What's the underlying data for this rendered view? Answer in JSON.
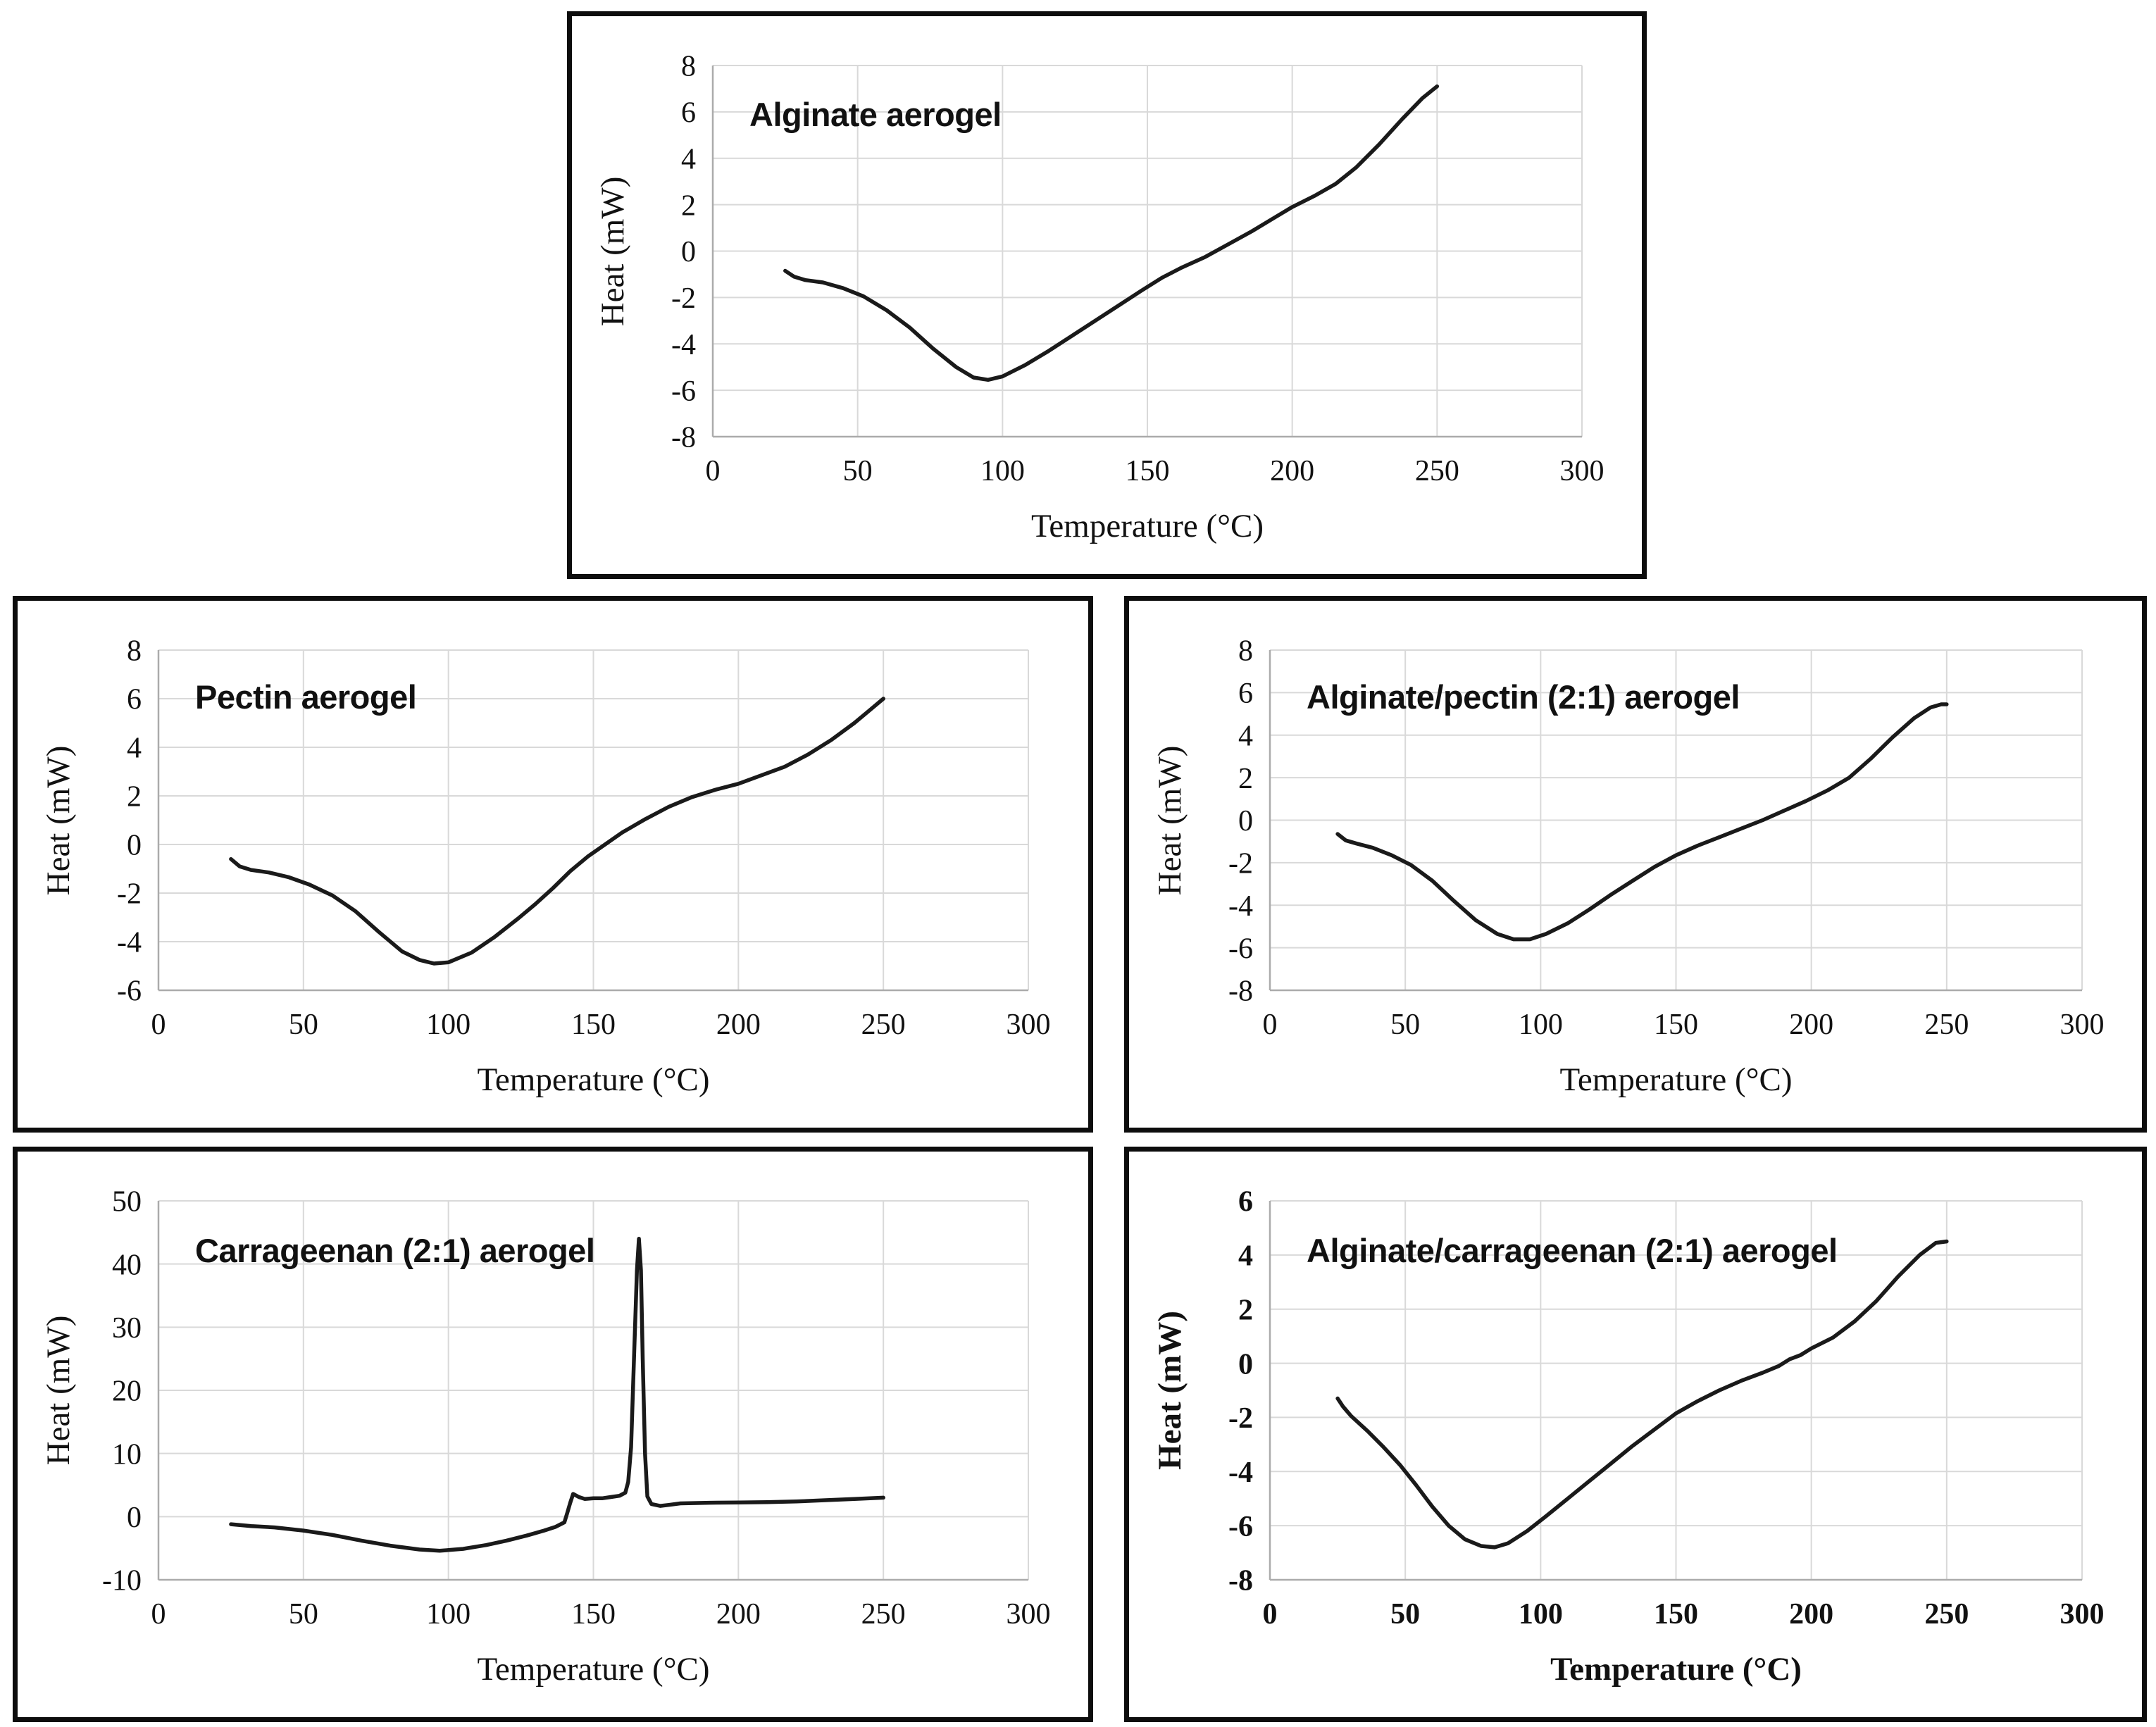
{
  "colors": {
    "curve": "#1a1a1a",
    "grid": "#d9d9d9",
    "axis": "#ababab",
    "text": "#111111"
  },
  "chart_data": [
    {
      "type": "line",
      "title": "Alginate aerogel",
      "xlabel": "Temperature (°C)",
      "ylabel": "Heat (mW)",
      "xlim": [
        0,
        300
      ],
      "ylim": [
        -8,
        8
      ],
      "xticks": [
        0,
        50,
        100,
        150,
        200,
        250,
        300
      ],
      "yticks": [
        8,
        6,
        4,
        2,
        0,
        -2,
        -4,
        -6,
        -8
      ],
      "grid": true,
      "legend": "none",
      "series": [
        {
          "name": "Alginate aerogel DSC",
          "points": [
            [
              25,
              -0.85
            ],
            [
              28,
              -1.1
            ],
            [
              32,
              -1.25
            ],
            [
              38,
              -1.35
            ],
            [
              45,
              -1.6
            ],
            [
              52,
              -1.95
            ],
            [
              60,
              -2.55
            ],
            [
              68,
              -3.3
            ],
            [
              76,
              -4.2
            ],
            [
              84,
              -5.0
            ],
            [
              90,
              -5.45
            ],
            [
              95,
              -5.55
            ],
            [
              100,
              -5.4
            ],
            [
              108,
              -4.9
            ],
            [
              116,
              -4.3
            ],
            [
              124,
              -3.65
            ],
            [
              132,
              -3.0
            ],
            [
              140,
              -2.35
            ],
            [
              148,
              -1.7
            ],
            [
              155,
              -1.15
            ],
            [
              162,
              -0.7
            ],
            [
              170,
              -0.25
            ],
            [
              178,
              0.3
            ],
            [
              186,
              0.85
            ],
            [
              194,
              1.45
            ],
            [
              200,
              1.9
            ],
            [
              208,
              2.4
            ],
            [
              215,
              2.9
            ],
            [
              222,
              3.6
            ],
            [
              230,
              4.6
            ],
            [
              238,
              5.7
            ],
            [
              245,
              6.6
            ],
            [
              250,
              7.1
            ]
          ]
        }
      ]
    },
    {
      "type": "line",
      "title": "Pectin aerogel",
      "xlabel": "Temperature (°C)",
      "ylabel": "Heat (mW)",
      "xlim": [
        0,
        300
      ],
      "ylim": [
        -6,
        8
      ],
      "xticks": [
        0,
        50,
        100,
        150,
        200,
        250,
        300
      ],
      "yticks": [
        8,
        6,
        4,
        2,
        0,
        -2,
        -4,
        -6
      ],
      "grid": true,
      "legend": "none",
      "series": [
        {
          "name": "Pectin aerogel DSC",
          "points": [
            [
              25,
              -0.6
            ],
            [
              28,
              -0.9
            ],
            [
              32,
              -1.05
            ],
            [
              38,
              -1.15
            ],
            [
              45,
              -1.35
            ],
            [
              52,
              -1.65
            ],
            [
              60,
              -2.1
            ],
            [
              68,
              -2.75
            ],
            [
              76,
              -3.6
            ],
            [
              84,
              -4.4
            ],
            [
              90,
              -4.75
            ],
            [
              95,
              -4.9
            ],
            [
              100,
              -4.85
            ],
            [
              108,
              -4.45
            ],
            [
              116,
              -3.8
            ],
            [
              124,
              -3.05
            ],
            [
              130,
              -2.45
            ],
            [
              136,
              -1.8
            ],
            [
              142,
              -1.1
            ],
            [
              148,
              -0.5
            ],
            [
              154,
              0.0
            ],
            [
              160,
              0.5
            ],
            [
              168,
              1.05
            ],
            [
              176,
              1.55
            ],
            [
              184,
              1.95
            ],
            [
              192,
              2.25
            ],
            [
              200,
              2.5
            ],
            [
              208,
              2.85
            ],
            [
              216,
              3.2
            ],
            [
              224,
              3.7
            ],
            [
              232,
              4.3
            ],
            [
              240,
              5.0
            ],
            [
              245,
              5.5
            ],
            [
              250,
              6.0
            ]
          ]
        }
      ]
    },
    {
      "type": "line",
      "title": "Alginate/pectin (2:1) aerogel",
      "xlabel": "Temperature (°C)",
      "ylabel": "Heat (mW)",
      "xlim": [
        0,
        300
      ],
      "ylim": [
        -8,
        8
      ],
      "xticks": [
        0,
        50,
        100,
        150,
        200,
        250,
        300
      ],
      "yticks": [
        8,
        6,
        4,
        2,
        0,
        -2,
        -4,
        -6,
        -8
      ],
      "grid": true,
      "legend": "none",
      "series": [
        {
          "name": "Alginate/pectin (2:1) aerogel DSC",
          "points": [
            [
              25,
              -0.65
            ],
            [
              28,
              -0.95
            ],
            [
              32,
              -1.1
            ],
            [
              38,
              -1.3
            ],
            [
              45,
              -1.65
            ],
            [
              52,
              -2.1
            ],
            [
              60,
              -2.85
            ],
            [
              68,
              -3.8
            ],
            [
              76,
              -4.7
            ],
            [
              84,
              -5.35
            ],
            [
              90,
              -5.6
            ],
            [
              96,
              -5.6
            ],
            [
              102,
              -5.35
            ],
            [
              110,
              -4.85
            ],
            [
              118,
              -4.2
            ],
            [
              126,
              -3.5
            ],
            [
              134,
              -2.85
            ],
            [
              142,
              -2.2
            ],
            [
              150,
              -1.65
            ],
            [
              158,
              -1.2
            ],
            [
              166,
              -0.8
            ],
            [
              174,
              -0.4
            ],
            [
              182,
              0.0
            ],
            [
              190,
              0.45
            ],
            [
              198,
              0.9
            ],
            [
              206,
              1.4
            ],
            [
              214,
              2.0
            ],
            [
              222,
              2.9
            ],
            [
              230,
              3.9
            ],
            [
              238,
              4.8
            ],
            [
              244,
              5.3
            ],
            [
              248,
              5.45
            ],
            [
              250,
              5.45
            ]
          ]
        }
      ]
    },
    {
      "type": "line",
      "title": "Carrageenan (2:1) aerogel",
      "xlabel": "Temperature (°C)",
      "ylabel": "Heat (mW)",
      "xlim": [
        0,
        300
      ],
      "ylim": [
        -10,
        50
      ],
      "xticks": [
        0,
        50,
        100,
        150,
        200,
        250,
        300
      ],
      "yticks": [
        50,
        40,
        30,
        20,
        10,
        0,
        -10
      ],
      "grid": true,
      "legend": "none",
      "series": [
        {
          "name": "Carrageenan (2:1) aerogel DSC",
          "points": [
            [
              25,
              -1.2
            ],
            [
              32,
              -1.5
            ],
            [
              40,
              -1.7
            ],
            [
              50,
              -2.2
            ],
            [
              60,
              -2.9
            ],
            [
              70,
              -3.8
            ],
            [
              80,
              -4.6
            ],
            [
              90,
              -5.2
            ],
            [
              97,
              -5.4
            ],
            [
              105,
              -5.1
            ],
            [
              113,
              -4.5
            ],
            [
              120,
              -3.8
            ],
            [
              127,
              -3.0
            ],
            [
              133,
              -2.2
            ],
            [
              137,
              -1.6
            ],
            [
              140,
              -0.9
            ],
            [
              141,
              0.6
            ],
            [
              142,
              2.2
            ],
            [
              143,
              3.6
            ],
            [
              145,
              3.1
            ],
            [
              147,
              2.8
            ],
            [
              150,
              2.9
            ],
            [
              153,
              2.9
            ],
            [
              156,
              3.1
            ],
            [
              159,
              3.3
            ],
            [
              161,
              3.8
            ],
            [
              162,
              5.5
            ],
            [
              163,
              11
            ],
            [
              164,
              25
            ],
            [
              165,
              39
            ],
            [
              165.7,
              44
            ],
            [
              166.4,
              39
            ],
            [
              167,
              25
            ],
            [
              167.8,
              10
            ],
            [
              168.6,
              3.2
            ],
            [
              170,
              2.0
            ],
            [
              173,
              1.7
            ],
            [
              176,
              1.85
            ],
            [
              180,
              2.1
            ],
            [
              190,
              2.2
            ],
            [
              200,
              2.25
            ],
            [
              210,
              2.3
            ],
            [
              220,
              2.4
            ],
            [
              230,
              2.6
            ],
            [
              240,
              2.8
            ],
            [
              250,
              3.0
            ]
          ]
        }
      ]
    },
    {
      "type": "line",
      "title": "Alginate/carrageenan (2:1) aerogel",
      "xlabel": "Temperature (°C)",
      "ylabel": "Heat (mW)",
      "xlim": [
        0,
        300
      ],
      "ylim": [
        -8,
        6
      ],
      "xticks": [
        0,
        50,
        100,
        150,
        200,
        250,
        300
      ],
      "yticks": [
        6,
        4,
        2,
        0,
        -2,
        -4,
        -6,
        -8
      ],
      "grid": true,
      "legend": "none",
      "series": [
        {
          "name": "Alginate/carrageenan (2:1) aerogel DSC",
          "points": [
            [
              25,
              -1.3
            ],
            [
              27,
              -1.6
            ],
            [
              30,
              -1.95
            ],
            [
              36,
              -2.5
            ],
            [
              42,
              -3.1
            ],
            [
              48,
              -3.75
            ],
            [
              54,
              -4.5
            ],
            [
              60,
              -5.3
            ],
            [
              66,
              -6.0
            ],
            [
              72,
              -6.5
            ],
            [
              78,
              -6.75
            ],
            [
              83,
              -6.8
            ],
            [
              88,
              -6.65
            ],
            [
              95,
              -6.2
            ],
            [
              102,
              -5.65
            ],
            [
              110,
              -5.0
            ],
            [
              118,
              -4.35
            ],
            [
              126,
              -3.7
            ],
            [
              134,
              -3.05
            ],
            [
              142,
              -2.45
            ],
            [
              150,
              -1.85
            ],
            [
              158,
              -1.4
            ],
            [
              166,
              -1.0
            ],
            [
              174,
              -0.65
            ],
            [
              182,
              -0.35
            ],
            [
              188,
              -0.1
            ],
            [
              192,
              0.15
            ],
            [
              196,
              0.3
            ],
            [
              200,
              0.55
            ],
            [
              208,
              0.95
            ],
            [
              216,
              1.55
            ],
            [
              224,
              2.3
            ],
            [
              232,
              3.2
            ],
            [
              240,
              4.0
            ],
            [
              246,
              4.45
            ],
            [
              250,
              4.5
            ]
          ]
        }
      ]
    }
  ]
}
